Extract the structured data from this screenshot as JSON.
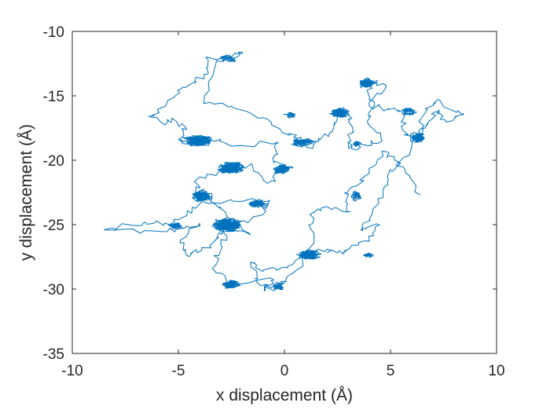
{
  "chart_data": {
    "type": "line",
    "xlabel": "x displacement (Å)",
    "ylabel": "y displacement (Å)",
    "xlim": [
      -10,
      10
    ],
    "ylim": [
      -35,
      -10
    ],
    "xticks": [
      -10,
      -5,
      0,
      5,
      10
    ],
    "yticks": [
      -35,
      -30,
      -25,
      -20,
      -15,
      -10
    ],
    "xtick_labels": [
      "-10",
      "-5",
      "0",
      "5",
      "10"
    ],
    "ytick_labels": [
      "-35",
      "-30",
      "-25",
      "-20",
      "-15",
      "-10"
    ],
    "grid": false,
    "legend": "none",
    "line_color": "#0072BD",
    "series": [
      {
        "trajectory_seed": 1987,
        "random_step_per_point": 0.18,
        "points": [
          [
            6.4,
            -22.7
          ],
          [
            5.9,
            -21.2
          ],
          [
            5.2,
            -20.0
          ],
          [
            4.6,
            -19.3
          ],
          [
            4.0,
            -21.0
          ],
          [
            3.4,
            -22.0
          ],
          [
            2.9,
            -22.6
          ],
          [
            3.1,
            -24.0
          ],
          [
            2.0,
            -23.6
          ],
          [
            1.2,
            -24.2
          ],
          [
            1.4,
            -26.0
          ],
          [
            0.6,
            -28.5
          ],
          [
            -0.1,
            -29.6
          ],
          [
            -0.9,
            -30.1
          ],
          [
            -0.5,
            -29.3
          ],
          [
            -2.6,
            -29.5
          ],
          [
            -3.4,
            -28.4
          ],
          [
            -3.0,
            -26.6
          ],
          [
            -2.6,
            -25.1
          ],
          [
            -1.0,
            -24.2
          ],
          [
            -0.7,
            -23.1
          ],
          [
            -2.1,
            -23.2
          ],
          [
            -3.9,
            -23.2
          ],
          [
            -4.6,
            -24.3
          ],
          [
            -5.4,
            -25.0
          ],
          [
            -6.6,
            -24.8
          ],
          [
            -8.5,
            -25.4
          ],
          [
            -6.0,
            -25.5
          ],
          [
            -4.9,
            -25.3
          ],
          [
            -4.0,
            -24.9
          ],
          [
            -4.9,
            -26.2
          ],
          [
            -4.6,
            -27.4
          ],
          [
            -3.9,
            -27.0
          ],
          [
            -3.1,
            -26.0
          ],
          [
            -2.7,
            -25.2
          ],
          [
            -1.6,
            -25.8
          ],
          [
            -2.8,
            -24.0
          ],
          [
            -3.6,
            -22.8
          ],
          [
            -4.2,
            -22.4
          ],
          [
            -4.0,
            -21.3
          ],
          [
            -3.0,
            -20.9
          ],
          [
            -2.4,
            -20.3
          ],
          [
            -1.5,
            -20.5
          ],
          [
            -0.8,
            -21.8
          ],
          [
            -0.2,
            -20.8
          ],
          [
            0.4,
            -20.6
          ],
          [
            -0.5,
            -20.2
          ],
          [
            -0.3,
            -18.6
          ],
          [
            -2.5,
            -18.9
          ],
          [
            -3.8,
            -18.2
          ],
          [
            -4.4,
            -18.9
          ],
          [
            -5.0,
            -18.4
          ],
          [
            -4.6,
            -17.6
          ],
          [
            -5.3,
            -16.8
          ],
          [
            -5.6,
            -17.2
          ],
          [
            -6.4,
            -16.6
          ],
          [
            -5.6,
            -15.8
          ],
          [
            -5.0,
            -14.6
          ],
          [
            -4.2,
            -14.0
          ],
          [
            -3.6,
            -13.3
          ],
          [
            -3.7,
            -12.0
          ],
          [
            -2.5,
            -12.2
          ],
          [
            -2.0,
            -11.6
          ],
          [
            -3.2,
            -12.3
          ],
          [
            -3.8,
            -15.6
          ],
          [
            -2.5,
            -15.8
          ],
          [
            -1.0,
            -16.7
          ],
          [
            0.0,
            -17.9
          ],
          [
            0.6,
            -18.3
          ],
          [
            1.1,
            -19.0
          ],
          [
            1.6,
            -18.5
          ],
          [
            2.2,
            -17.8
          ],
          [
            2.5,
            -16.6
          ],
          [
            3.0,
            -16.3
          ],
          [
            3.2,
            -17.4
          ],
          [
            3.0,
            -18.6
          ],
          [
            3.4,
            -19.2
          ],
          [
            3.8,
            -18.8
          ],
          [
            4.6,
            -18.5
          ],
          [
            3.9,
            -17.0
          ],
          [
            4.2,
            -15.4
          ],
          [
            3.9,
            -14.1
          ],
          [
            3.6,
            -13.8
          ],
          [
            4.8,
            -14.2
          ],
          [
            4.0,
            -15.8
          ],
          [
            4.9,
            -16.0
          ],
          [
            5.5,
            -16.2
          ],
          [
            5.6,
            -17.7
          ],
          [
            6.0,
            -18.5
          ],
          [
            6.5,
            -17.9
          ],
          [
            6.8,
            -17.0
          ],
          [
            7.3,
            -16.1
          ],
          [
            7.6,
            -16.9
          ],
          [
            8.4,
            -16.5
          ],
          [
            7.2,
            -15.3
          ],
          [
            6.6,
            -16.4
          ],
          [
            6.3,
            -18.3
          ],
          [
            5.6,
            -19.8
          ],
          [
            4.9,
            -21.5
          ],
          [
            4.4,
            -23.0
          ],
          [
            4.0,
            -24.6
          ],
          [
            3.6,
            -25.4
          ],
          [
            4.5,
            -25.0
          ],
          [
            4.0,
            -26.3
          ],
          [
            3.1,
            -26.8
          ],
          [
            2.5,
            -27.2
          ],
          [
            1.6,
            -26.9
          ],
          [
            1.0,
            -27.6
          ],
          [
            0.0,
            -28.3
          ],
          [
            -1.0,
            -28.6
          ],
          [
            -1.6,
            -27.9
          ],
          [
            -1.4,
            -29.2
          ],
          [
            -0.6,
            -29.9
          ],
          [
            0.1,
            -29.4
          ]
        ]
      }
    ],
    "clusters": [
      {
        "cx": -2.6,
        "cy": -12.1,
        "rx": 0.55,
        "ry": 0.35,
        "loops": 3
      },
      {
        "cx": 3.9,
        "cy": -14.0,
        "rx": 0.55,
        "ry": 0.45,
        "loops": 5
      },
      {
        "cx": 2.6,
        "cy": -16.3,
        "rx": 0.6,
        "ry": 0.55,
        "loops": 6
      },
      {
        "cx": 5.9,
        "cy": -16.2,
        "rx": 0.5,
        "ry": 0.4,
        "loops": 3
      },
      {
        "cx": 0.3,
        "cy": -16.5,
        "rx": 0.4,
        "ry": 0.3,
        "loops": 2
      },
      {
        "cx": 0.8,
        "cy": -18.6,
        "rx": 0.7,
        "ry": 0.45,
        "loops": 5
      },
      {
        "cx": 3.4,
        "cy": -18.7,
        "rx": 0.3,
        "ry": 0.3,
        "loops": 2
      },
      {
        "cx": 6.3,
        "cy": -18.2,
        "rx": 0.5,
        "ry": 0.55,
        "loops": 6
      },
      {
        "cx": -4.1,
        "cy": -18.5,
        "rx": 0.85,
        "ry": 0.6,
        "loops": 12
      },
      {
        "cx": -2.5,
        "cy": -20.6,
        "rx": 0.85,
        "ry": 0.55,
        "loops": 12
      },
      {
        "cx": -0.1,
        "cy": -20.7,
        "rx": 0.55,
        "ry": 0.45,
        "loops": 7
      },
      {
        "cx": -3.9,
        "cy": -22.8,
        "rx": 0.65,
        "ry": 0.6,
        "loops": 10
      },
      {
        "cx": -1.2,
        "cy": -23.4,
        "rx": 0.6,
        "ry": 0.5,
        "loops": 4
      },
      {
        "cx": 3.4,
        "cy": -22.8,
        "rx": 0.35,
        "ry": 0.6,
        "loops": 3
      },
      {
        "cx": -2.7,
        "cy": -25.0,
        "rx": 0.85,
        "ry": 0.7,
        "loops": 14
      },
      {
        "cx": -5.1,
        "cy": -25.1,
        "rx": 0.45,
        "ry": 0.35,
        "loops": 4
      },
      {
        "cx": 1.2,
        "cy": -27.3,
        "rx": 0.75,
        "ry": 0.45,
        "loops": 9
      },
      {
        "cx": 4.0,
        "cy": -27.4,
        "rx": 0.35,
        "ry": 0.25,
        "loops": 2
      },
      {
        "cx": -2.5,
        "cy": -29.6,
        "rx": 0.6,
        "ry": 0.45,
        "loops": 6
      },
      {
        "cx": -0.3,
        "cy": -29.8,
        "rx": 0.35,
        "ry": 0.35,
        "loops": 3
      }
    ]
  }
}
